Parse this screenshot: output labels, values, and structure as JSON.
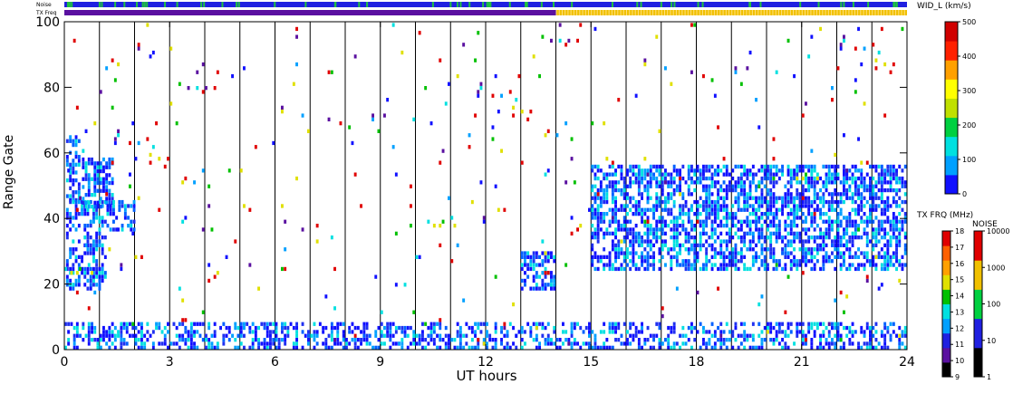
{
  "chart_data": {
    "type": "heatmap",
    "xlabel": "UT hours",
    "ylabel": "Range Gate",
    "xlim": [
      0,
      24
    ],
    "ylim": [
      0,
      100
    ],
    "x_ticks": [
      0,
      3,
      6,
      9,
      12,
      15,
      18,
      21,
      24
    ],
    "y_ticks": [
      0,
      20,
      40,
      60,
      80,
      100
    ],
    "grid": "vertical lines at every hour",
    "status_bars": [
      {
        "label": "Noise",
        "base_color": "#2020e0",
        "accent_color": "#20c040"
      },
      {
        "label": "TX Freq",
        "segments": [
          {
            "from": 0,
            "to": 14,
            "color": "#5a10a0"
          },
          {
            "from": 14,
            "to": 24,
            "color": "#f0c000"
          }
        ]
      }
    ],
    "colorbars": [
      {
        "label": "WID_L (km/s)",
        "range": [
          0,
          500
        ],
        "ticks": [
          0,
          100,
          200,
          300,
          400,
          500
        ],
        "colors": [
          "#1010ff",
          "#00a0ff",
          "#00e0e0",
          "#00d040",
          "#c0e000",
          "#ffff00",
          "#ffa000",
          "#ff2000",
          "#d00000"
        ]
      },
      {
        "label": "TX FRQ (MHz)",
        "ticks": [
          9,
          10,
          11,
          12,
          13,
          14,
          15,
          16,
          17,
          18
        ],
        "colors": [
          "#000000",
          "#5a10a0",
          "#2020e0",
          "#00a0ff",
          "#00e0e0",
          "#00c000",
          "#e0e000",
          "#ffa000",
          "#ff6000",
          "#e00000"
        ]
      },
      {
        "label": "NOISE",
        "ticks": [
          "1",
          "10",
          "100",
          "1000",
          "10000"
        ],
        "colors": [
          "#000000",
          "#2020e0",
          "#00d040",
          "#f0c000",
          "#e00000"
        ]
      }
    ],
    "series": [
      {
        "x_range": [
          0.05,
          0.5
        ],
        "y_range": [
          45,
          65
        ],
        "density": 0.6,
        "dominant_color": "blue"
      },
      {
        "x_range": [
          0.05,
          1.2
        ],
        "y_range": [
          18,
          45
        ],
        "density": 0.5,
        "dominant_color": "blue"
      },
      {
        "x_range": [
          0.5,
          1.4
        ],
        "y_range": [
          43,
          58
        ],
        "density": 0.55,
        "dominant_color": "blue"
      },
      {
        "x_range": [
          1.2,
          2.0
        ],
        "y_range": [
          36,
          46
        ],
        "density": 0.5,
        "dominant_color": "blue"
      },
      {
        "x_range": [
          13.0,
          14.0
        ],
        "y_range": [
          18,
          30
        ],
        "density": 0.6,
        "dominant_color": "blue"
      },
      {
        "x_range": [
          15.0,
          24.0
        ],
        "y_range": [
          24,
          56
        ],
        "density": 0.6,
        "dominant_color": "blue"
      },
      {
        "x_range": [
          0.0,
          24.0
        ],
        "y_range": [
          0,
          8
        ],
        "density": 0.45,
        "dominant_color": "blue"
      },
      {
        "x_range": [
          0.0,
          24.0
        ],
        "y_range": [
          0,
          100
        ],
        "density": 0.015,
        "dominant_color": "mixed"
      }
    ]
  }
}
